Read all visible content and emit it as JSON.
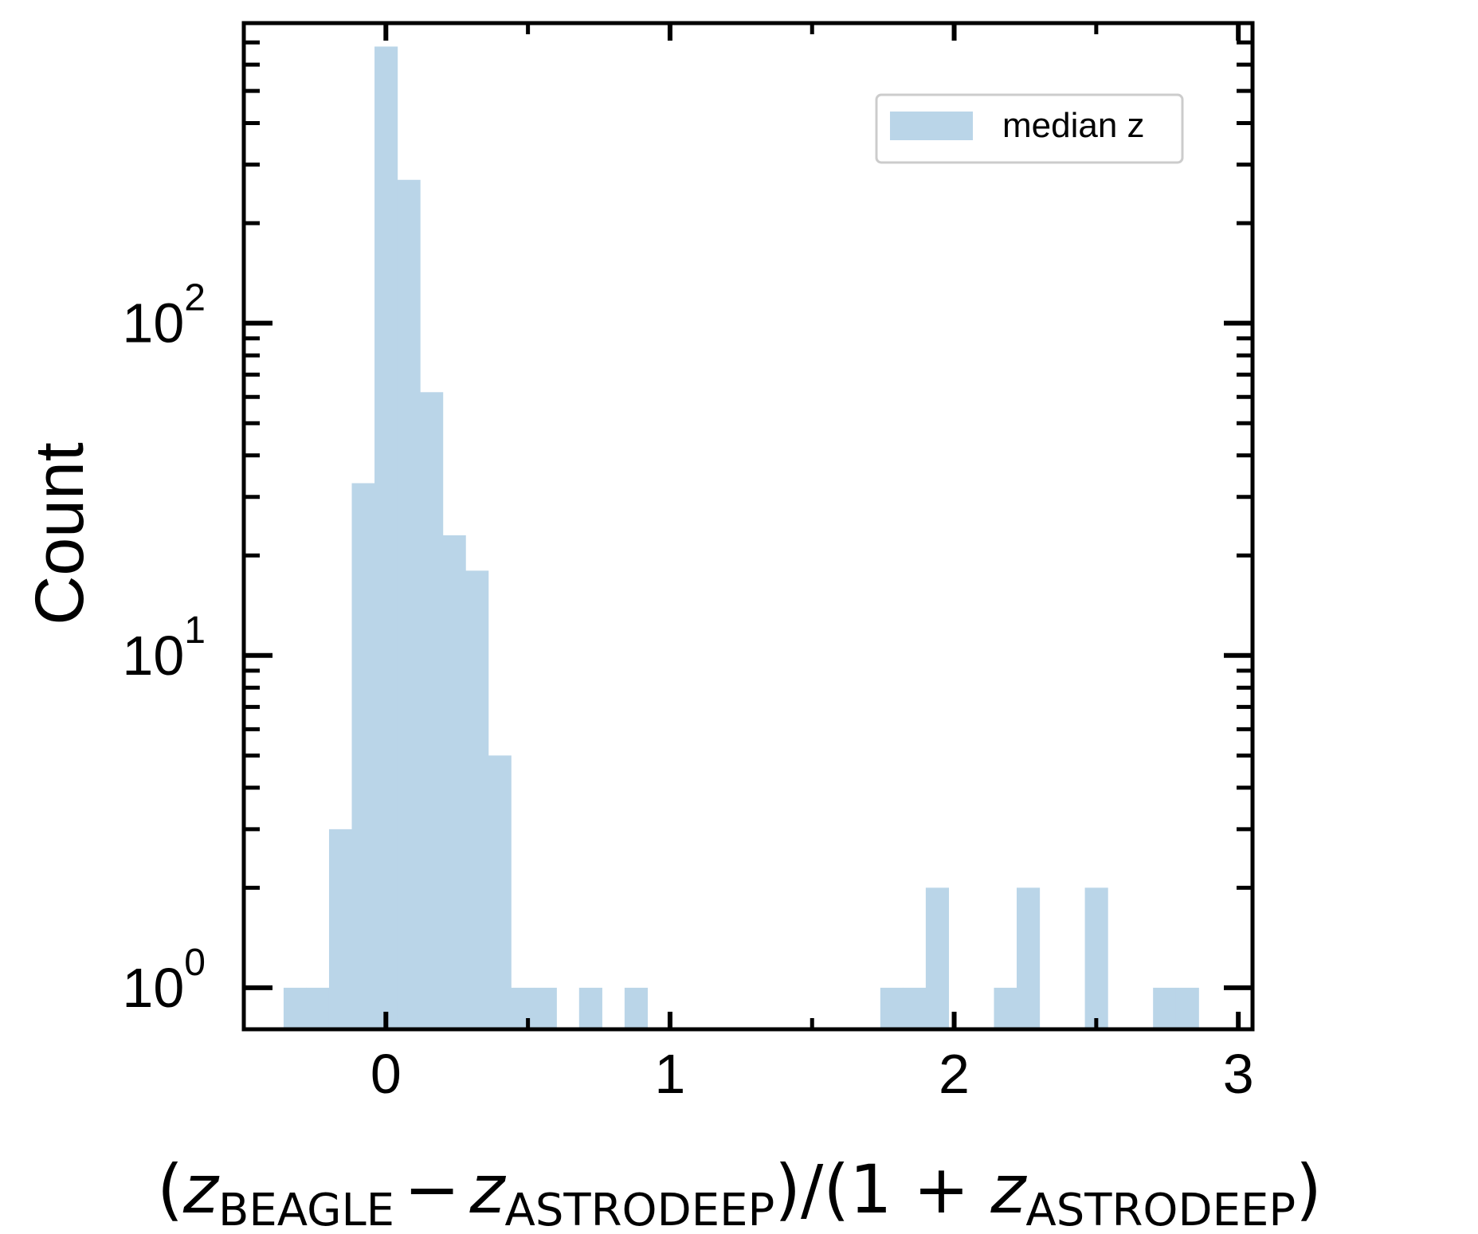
{
  "chart_data": {
    "type": "bar",
    "subtype": "histogram",
    "yscale": "log",
    "xlim": [
      -0.5,
      3.05
    ],
    "ylim": [
      0.75,
      800
    ],
    "x_ticks": [
      0,
      1,
      2,
      3
    ],
    "x_tick_labels": [
      "0",
      "1",
      "2",
      "3"
    ],
    "y_ticks": [
      1,
      10,
      100
    ],
    "y_tick_labels": [
      {
        "base": "10",
        "exp": "0"
      },
      {
        "base": "10",
        "exp": "1"
      },
      {
        "base": "10",
        "exp": "2"
      }
    ],
    "xlabel": {
      "open": "(",
      "z1": "z",
      "sub1": "BEAGLE",
      "minus": "−",
      "z2": "z",
      "sub2": "ASTRODEEP",
      "mid": ")/(1 + ",
      "z3": "z",
      "sub3": "ASTRODEEP",
      "close": ")"
    },
    "ylabel": "Count",
    "grid": false,
    "legend": {
      "position": "upper right",
      "entries": [
        "median z"
      ]
    },
    "bar_color": "#bad5e8",
    "bin_width": 0.08,
    "series": [
      {
        "name": "median z",
        "bins": [
          {
            "x0": -0.36,
            "x1": -0.28,
            "count": 1
          },
          {
            "x0": -0.28,
            "x1": -0.2,
            "count": 1
          },
          {
            "x0": -0.2,
            "x1": -0.12,
            "count": 3
          },
          {
            "x0": -0.12,
            "x1": -0.04,
            "count": 33
          },
          {
            "x0": -0.04,
            "x1": 0.04,
            "count": 680
          },
          {
            "x0": 0.04,
            "x1": 0.12,
            "count": 270
          },
          {
            "x0": 0.12,
            "x1": 0.2,
            "count": 62
          },
          {
            "x0": 0.2,
            "x1": 0.28,
            "count": 23
          },
          {
            "x0": 0.28,
            "x1": 0.36,
            "count": 18
          },
          {
            "x0": 0.36,
            "x1": 0.44,
            "count": 5
          },
          {
            "x0": 0.44,
            "x1": 0.52,
            "count": 1
          },
          {
            "x0": 0.52,
            "x1": 0.6,
            "count": 1
          },
          {
            "x0": 0.68,
            "x1": 0.76,
            "count": 1
          },
          {
            "x0": 0.84,
            "x1": 0.92,
            "count": 1
          },
          {
            "x0": 1.74,
            "x1": 1.82,
            "count": 1
          },
          {
            "x0": 1.82,
            "x1": 1.9,
            "count": 1
          },
          {
            "x0": 1.9,
            "x1": 1.98,
            "count": 2
          },
          {
            "x0": 2.14,
            "x1": 2.22,
            "count": 1
          },
          {
            "x0": 2.22,
            "x1": 2.3,
            "count": 2
          },
          {
            "x0": 2.46,
            "x1": 2.54,
            "count": 2
          },
          {
            "x0": 2.7,
            "x1": 2.78,
            "count": 1
          },
          {
            "x0": 2.78,
            "x1": 2.86,
            "count": 1
          }
        ]
      }
    ]
  }
}
